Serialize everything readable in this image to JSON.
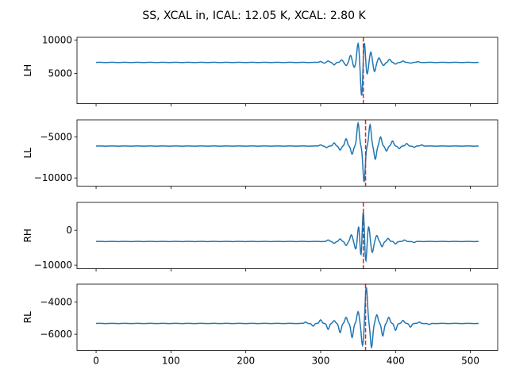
{
  "figure": {
    "title": "SS, XCAL in, ICAL: 12.05 K, XCAL: 2.80 K"
  },
  "chart_data": [
    {
      "type": "line",
      "ylabel": "LH",
      "xlim": [
        -25.5,
        536.5
      ],
      "ylim": [
        500,
        10400
      ],
      "yticks": [
        5000,
        10000
      ],
      "ytick_labels": [
        "5000",
        "10000"
      ],
      "xticks": [
        0,
        100,
        200,
        300,
        400,
        500
      ],
      "xtick_labels": [],
      "baseline": 6650,
      "marker_x": 357,
      "peaks": [
        {
          "x": 300,
          "y": 6800
        },
        {
          "x": 305,
          "y": 6550
        },
        {
          "x": 310,
          "y": 6850
        },
        {
          "x": 318,
          "y": 6300
        },
        {
          "x": 328,
          "y": 7000
        },
        {
          "x": 334,
          "y": 6200
        },
        {
          "x": 340,
          "y": 7700
        },
        {
          "x": 345,
          "y": 5900
        },
        {
          "x": 350,
          "y": 9500
        },
        {
          "x": 355,
          "y": 1200
        },
        {
          "x": 358,
          "y": 10300
        },
        {
          "x": 362,
          "y": 4800
        },
        {
          "x": 367,
          "y": 8200
        },
        {
          "x": 372,
          "y": 5300
        },
        {
          "x": 378,
          "y": 7300
        },
        {
          "x": 384,
          "y": 6200
        },
        {
          "x": 392,
          "y": 7100
        },
        {
          "x": 400,
          "y": 6400
        },
        {
          "x": 410,
          "y": 6850
        },
        {
          "x": 420,
          "y": 6550
        },
        {
          "x": 430,
          "y": 6750
        }
      ],
      "series": [
        {
          "color": "#1f77b4",
          "x_range": [
            0,
            511
          ]
        }
      ],
      "marker_color": "#d62728"
    },
    {
      "type": "line",
      "ylabel": "LL",
      "xlim": [
        -25.5,
        536.5
      ],
      "ylim": [
        -11000,
        -2900
      ],
      "yticks": [
        -10000,
        -5000
      ],
      "ytick_labels": [
        "−10000",
        "−5000"
      ],
      "xticks": [
        0,
        100,
        200,
        300,
        400,
        500
      ],
      "xtick_labels": [],
      "baseline": -6100,
      "marker_x": 360,
      "peaks": [
        {
          "x": 300,
          "y": -5950
        },
        {
          "x": 308,
          "y": -6300
        },
        {
          "x": 318,
          "y": -5700
        },
        {
          "x": 326,
          "y": -6600
        },
        {
          "x": 334,
          "y": -5200
        },
        {
          "x": 342,
          "y": -7100
        },
        {
          "x": 350,
          "y": -3300
        },
        {
          "x": 358,
          "y": -10500
        },
        {
          "x": 366,
          "y": -3500
        },
        {
          "x": 373,
          "y": -7700
        },
        {
          "x": 380,
          "y": -5000
        },
        {
          "x": 388,
          "y": -6700
        },
        {
          "x": 396,
          "y": -5500
        },
        {
          "x": 405,
          "y": -6400
        },
        {
          "x": 415,
          "y": -5800
        },
        {
          "x": 425,
          "y": -6250
        },
        {
          "x": 435,
          "y": -5950
        }
      ],
      "series": [
        {
          "color": "#1f77b4",
          "x_range": [
            0,
            511
          ]
        }
      ],
      "marker_color": "#d62728"
    },
    {
      "type": "line",
      "ylabel": "RH",
      "xlim": [
        -25.5,
        536.5
      ],
      "ylim": [
        -11000,
        8000
      ],
      "yticks": [
        -10000,
        0
      ],
      "ytick_labels": [
        "−10000",
        "0"
      ],
      "xticks": [
        0,
        100,
        200,
        300,
        400,
        500
      ],
      "xtick_labels": [],
      "baseline": -3200,
      "marker_x": 357,
      "peaks": [
        {
          "x": 310,
          "y": -2800
        },
        {
          "x": 318,
          "y": -3700
        },
        {
          "x": 326,
          "y": -2500
        },
        {
          "x": 334,
          "y": -4300
        },
        {
          "x": 341,
          "y": -1300
        },
        {
          "x": 347,
          "y": -5500
        },
        {
          "x": 351,
          "y": 1800
        },
        {
          "x": 354,
          "y": -9300
        },
        {
          "x": 357,
          "y": 7300
        },
        {
          "x": 360,
          "y": -10200
        },
        {
          "x": 364,
          "y": 1200
        },
        {
          "x": 369,
          "y": -6300
        },
        {
          "x": 375,
          "y": -1500
        },
        {
          "x": 382,
          "y": -4700
        },
        {
          "x": 390,
          "y": -2300
        },
        {
          "x": 400,
          "y": -3900
        },
        {
          "x": 412,
          "y": -2800
        },
        {
          "x": 425,
          "y": -3500
        }
      ],
      "series": [
        {
          "color": "#1f77b4",
          "x_range": [
            0,
            511
          ]
        }
      ],
      "marker_color": "#d62728"
    },
    {
      "type": "line",
      "ylabel": "RL",
      "xlim": [
        -25.5,
        536.5
      ],
      "ylim": [
        -7000,
        -2900
      ],
      "yticks": [
        -6000,
        -4000
      ],
      "ytick_labels": [
        "−6000",
        "−4000"
      ],
      "xticks": [
        0,
        100,
        200,
        300,
        400,
        500
      ],
      "xtick_labels": [
        "0",
        "100",
        "200",
        "300",
        "400",
        "500"
      ],
      "baseline": -5330,
      "marker_x": 360,
      "peaks": [
        {
          "x": 280,
          "y": -5250
        },
        {
          "x": 290,
          "y": -5500
        },
        {
          "x": 300,
          "y": -5100
        },
        {
          "x": 310,
          "y": -5700
        },
        {
          "x": 318,
          "y": -5150
        },
        {
          "x": 326,
          "y": -5900
        },
        {
          "x": 334,
          "y": -4950
        },
        {
          "x": 342,
          "y": -6200
        },
        {
          "x": 350,
          "y": -4600
        },
        {
          "x": 356,
          "y": -6700
        },
        {
          "x": 361,
          "y": -3100
        },
        {
          "x": 368,
          "y": -6800
        },
        {
          "x": 375,
          "y": -4800
        },
        {
          "x": 383,
          "y": -6100
        },
        {
          "x": 391,
          "y": -4950
        },
        {
          "x": 400,
          "y": -5750
        },
        {
          "x": 410,
          "y": -5150
        },
        {
          "x": 420,
          "y": -5550
        },
        {
          "x": 432,
          "y": -5250
        },
        {
          "x": 445,
          "y": -5400
        }
      ],
      "series": [
        {
          "color": "#1f77b4",
          "x_range": [
            0,
            511
          ]
        }
      ],
      "marker_color": "#d62728"
    }
  ]
}
